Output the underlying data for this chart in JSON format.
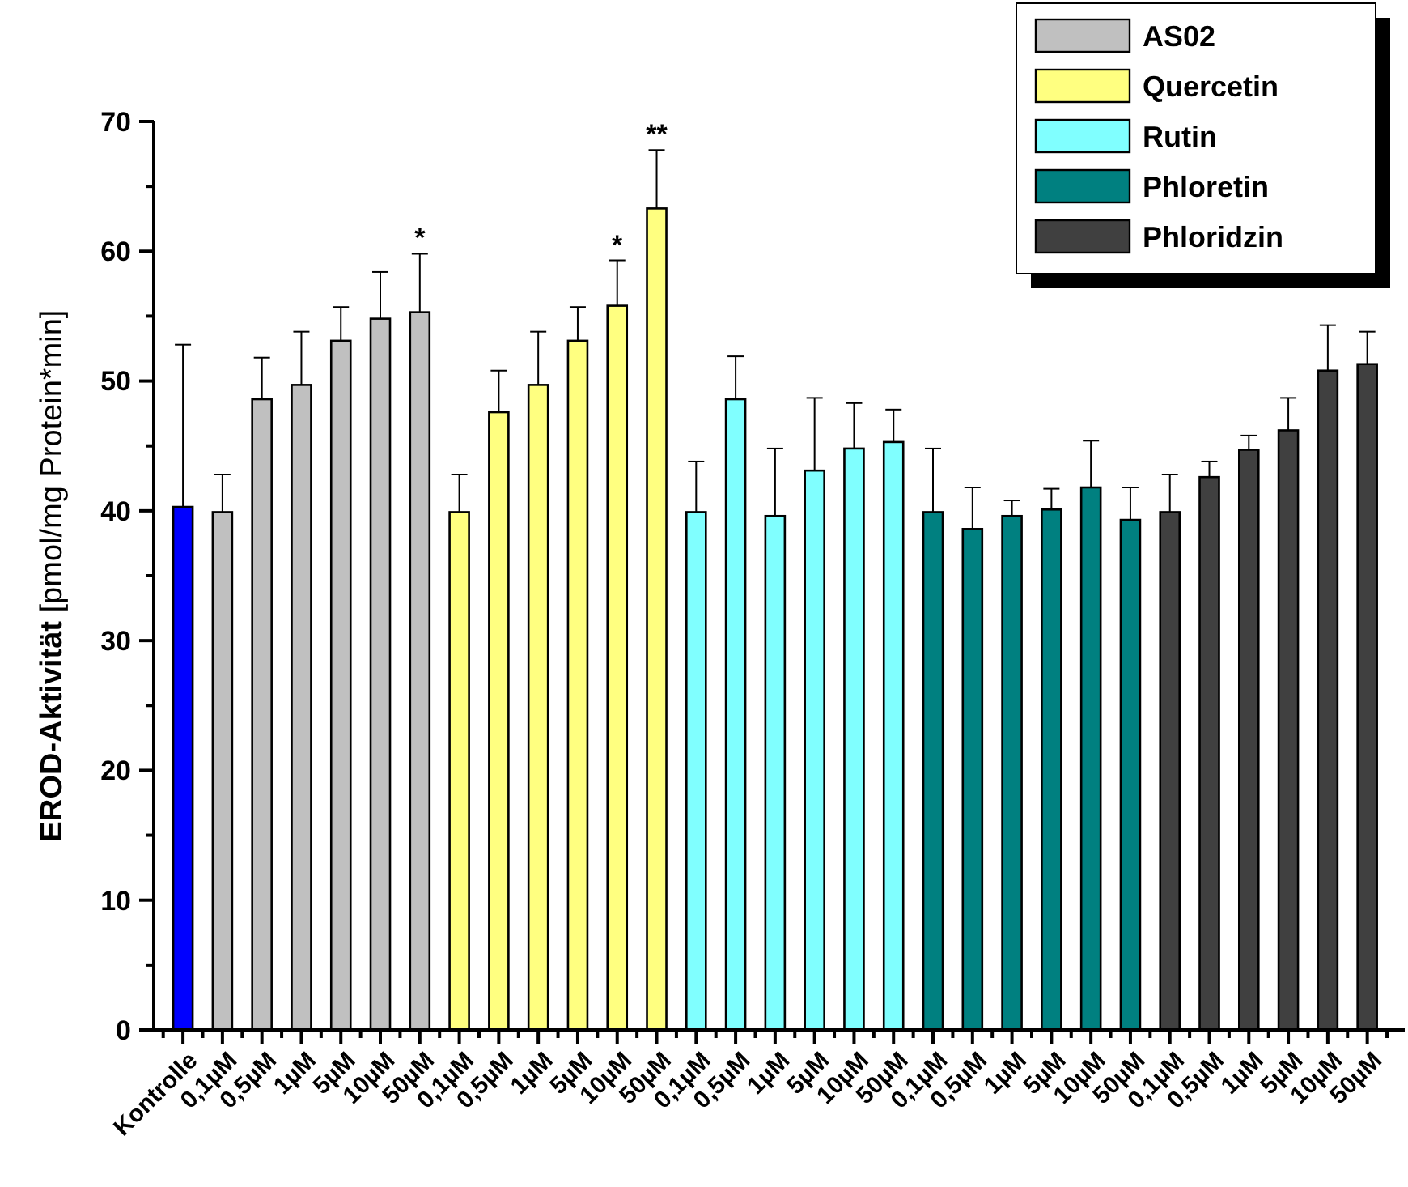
{
  "chart_data": {
    "type": "bar",
    "ylabel": "EROD-Aktivität [pmol/mg Protein*min]",
    "categories": [
      "Kontrolle",
      "0,1µM",
      "0,5µM",
      "1µM",
      "5µM",
      "10µM",
      "50µM",
      "0,1µM",
      "0,5µM",
      "1µM",
      "5µM",
      "10µM",
      "50µM",
      "0,1µM",
      "0,5µM",
      "1µM",
      "5µM",
      "10µM",
      "50µM",
      "0,1µM",
      "0,5µM",
      "1µM",
      "5µM",
      "10µM",
      "50µM",
      "0,1µM",
      "0,5µM",
      "1µM",
      "5µM",
      "10µM",
      "50µM"
    ],
    "series": [
      {
        "color": "#0000ff",
        "values": [
          40.3,
          null,
          null,
          null,
          null,
          null,
          null,
          null,
          null,
          null,
          null,
          null,
          null,
          null,
          null,
          null,
          null,
          null,
          null,
          null,
          null,
          null,
          null,
          null,
          null,
          null,
          null,
          null,
          null,
          null,
          null
        ],
        "errors": [
          [
            40.3,
            52.8
          ],
          null,
          null,
          null,
          null,
          null,
          null,
          null,
          null,
          null,
          null,
          null,
          null,
          null,
          null,
          null,
          null,
          null,
          null,
          null,
          null,
          null,
          null,
          null,
          null,
          null,
          null,
          null,
          null,
          null,
          null
        ]
      },
      {
        "name": "AS02",
        "color": "#c0c0c0",
        "values": [
          null,
          39.9,
          48.6,
          49.7,
          53.1,
          54.8,
          55.3,
          null,
          null,
          null,
          null,
          null,
          null,
          null,
          null,
          null,
          null,
          null,
          null,
          null,
          null,
          null,
          null,
          null,
          null,
          null,
          null,
          null,
          null,
          null,
          null
        ],
        "errors": [
          null,
          [
            39.9,
            42.8
          ],
          [
            48.6,
            51.8
          ],
          [
            49.7,
            53.8
          ],
          [
            53.1,
            55.7
          ],
          [
            54.8,
            58.4
          ],
          [
            55.3,
            59.8
          ],
          null,
          null,
          null,
          null,
          null,
          null,
          null,
          null,
          null,
          null,
          null,
          null,
          null,
          null,
          null,
          null,
          null,
          null,
          null,
          null,
          null,
          null,
          null,
          null
        ],
        "value_labels": [
          null,
          null,
          null,
          null,
          null,
          null,
          "*",
          null,
          null,
          null,
          null,
          null,
          null,
          null,
          null,
          null,
          null,
          null,
          null,
          null,
          null,
          null,
          null,
          null,
          null,
          null,
          null,
          null,
          null,
          null,
          null
        ]
      },
      {
        "name": "Quercetin",
        "color": "#ffff80",
        "values": [
          null,
          null,
          null,
          null,
          null,
          null,
          null,
          39.9,
          47.6,
          49.7,
          53.1,
          55.8,
          63.3,
          null,
          null,
          null,
          null,
          null,
          null,
          null,
          null,
          null,
          null,
          null,
          null,
          null,
          null,
          null,
          null,
          null,
          null
        ],
        "errors": [
          null,
          null,
          null,
          null,
          null,
          null,
          null,
          [
            39.9,
            42.8
          ],
          [
            47.6,
            50.8
          ],
          [
            49.7,
            53.8
          ],
          [
            53.1,
            55.7
          ],
          [
            55.8,
            59.3
          ],
          [
            63.3,
            67.8
          ],
          null,
          null,
          null,
          null,
          null,
          null,
          null,
          null,
          null,
          null,
          null,
          null,
          null,
          null,
          null,
          null,
          null,
          null
        ],
        "value_labels": [
          null,
          null,
          null,
          null,
          null,
          null,
          null,
          null,
          null,
          null,
          null,
          "*",
          "**",
          null,
          null,
          null,
          null,
          null,
          null,
          null,
          null,
          null,
          null,
          null,
          null,
          null,
          null,
          null,
          null,
          null,
          null
        ]
      },
      {
        "name": "Rutin",
        "color": "#80ffff",
        "values": [
          null,
          null,
          null,
          null,
          null,
          null,
          null,
          null,
          null,
          null,
          null,
          null,
          null,
          39.9,
          48.6,
          39.6,
          43.1,
          44.8,
          45.3,
          null,
          null,
          null,
          null,
          null,
          null,
          null,
          null,
          null,
          null,
          null,
          null
        ],
        "errors": [
          null,
          null,
          null,
          null,
          null,
          null,
          null,
          null,
          null,
          null,
          null,
          null,
          null,
          [
            39.9,
            43.8
          ],
          [
            48.6,
            51.9
          ],
          [
            39.6,
            44.8
          ],
          [
            43.1,
            48.7
          ],
          [
            44.8,
            48.3
          ],
          [
            45.3,
            47.8
          ],
          null,
          null,
          null,
          null,
          null,
          null,
          null,
          null,
          null,
          null,
          null,
          null
        ]
      },
      {
        "name": "Phloretin",
        "color": "#008080",
        "values": [
          null,
          null,
          null,
          null,
          null,
          null,
          null,
          null,
          null,
          null,
          null,
          null,
          null,
          null,
          null,
          null,
          null,
          null,
          null,
          39.9,
          38.6,
          39.6,
          40.1,
          41.8,
          39.3,
          null,
          null,
          null,
          null,
          null,
          null
        ],
        "errors": [
          null,
          null,
          null,
          null,
          null,
          null,
          null,
          null,
          null,
          null,
          null,
          null,
          null,
          null,
          null,
          null,
          null,
          null,
          null,
          [
            39.9,
            44.8
          ],
          [
            38.6,
            41.8
          ],
          [
            39.6,
            40.8
          ],
          [
            40.1,
            41.7
          ],
          [
            41.8,
            45.4
          ],
          [
            39.3,
            41.8
          ],
          null,
          null,
          null,
          null,
          null,
          null
        ]
      },
      {
        "name": "Phloridzin",
        "color": "#404040",
        "values": [
          null,
          null,
          null,
          null,
          null,
          null,
          null,
          null,
          null,
          null,
          null,
          null,
          null,
          null,
          null,
          null,
          null,
          null,
          null,
          null,
          null,
          null,
          null,
          null,
          null,
          39.9,
          42.6,
          44.7,
          46.2,
          50.8,
          51.3
        ],
        "errors": [
          null,
          null,
          null,
          null,
          null,
          null,
          null,
          null,
          null,
          null,
          null,
          null,
          null,
          null,
          null,
          null,
          null,
          null,
          null,
          null,
          null,
          null,
          null,
          null,
          null,
          [
            39.9,
            42.8
          ],
          [
            42.6,
            43.8
          ],
          [
            44.7,
            45.8
          ],
          [
            46.2,
            48.7
          ],
          [
            50.8,
            54.3
          ],
          [
            51.3,
            53.8
          ]
        ]
      }
    ],
    "ylim": [
      0,
      70
    ],
    "yticks": [
      0,
      {
        "value": 5,
        "label": null
      },
      10,
      {
        "value": 15,
        "label": null
      },
      20,
      {
        "value": 25,
        "label": null
      },
      30,
      {
        "value": 35,
        "label": null
      },
      40,
      {
        "value": 45,
        "label": null
      },
      50,
      {
        "value": 55,
        "label": null
      },
      60,
      {
        "value": 65,
        "label": null
      },
      70
    ],
    "grid": false,
    "legend": "top right"
  }
}
